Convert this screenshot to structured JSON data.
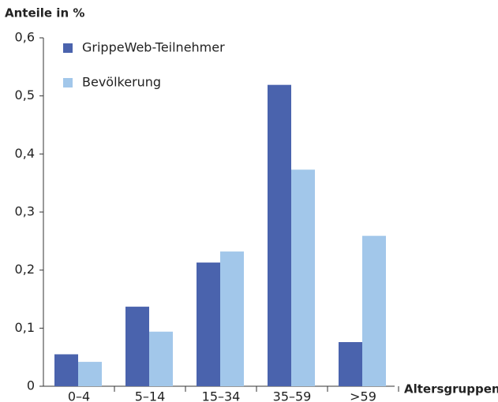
{
  "chart_data": {
    "type": "bar",
    "y_axis_label": "Anteile in %",
    "x_axis_label": "Altersgruppen",
    "categories": [
      "0–4",
      "5–14",
      "15–34",
      "35–59",
      ">59"
    ],
    "series": [
      {
        "name": "GrippeWeb-Teilnehmer",
        "color": "#4a63ad",
        "values": [
          0.055,
          0.137,
          0.213,
          0.519,
          0.076
        ]
      },
      {
        "name": "Bevölkerung",
        "color": "#a2c7ea",
        "values": [
          0.042,
          0.094,
          0.232,
          0.373,
          0.259
        ]
      }
    ],
    "ylim": [
      0,
      0.6
    ],
    "yticks": [
      0,
      {
        "value": 0.1,
        "label": "0,1"
      },
      {
        "value": 0.2,
        "label": "0,2"
      },
      {
        "value": 0.3,
        "label": "0,3"
      },
      {
        "value": 0.4,
        "label": "0,4"
      },
      {
        "value": 0.5,
        "label": "0,5"
      },
      {
        "value": 0.6,
        "label": "0,6"
      }
    ],
    "legend": "upper left",
    "grid": false
  }
}
